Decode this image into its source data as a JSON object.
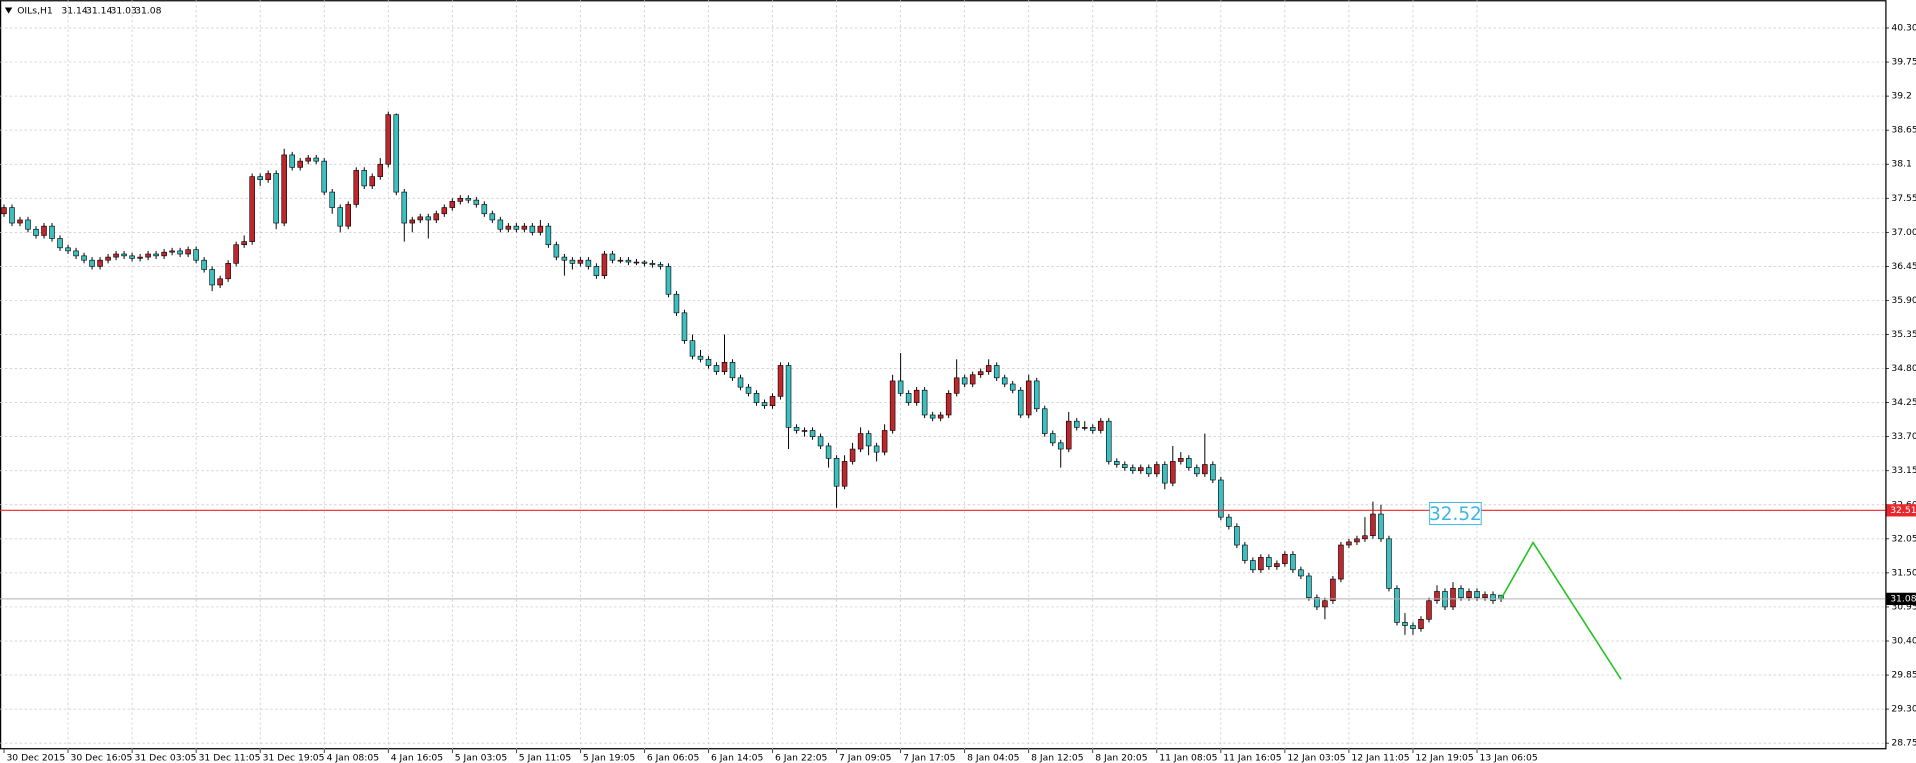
{
  "chart_data": {
    "type": "candlestick",
    "title": "OILs,H1",
    "up_color": "#c0272d",
    "down_color": "#3dbfbf",
    "grid": true,
    "categories": [
      "30 Dec 2015",
      null,
      null,
      null,
      null,
      null,
      null,
      null,
      "30 Dec 16:05",
      null,
      null,
      null,
      null,
      null,
      null,
      null,
      "31 Dec 03:05",
      null,
      null,
      null,
      null,
      null,
      null,
      null,
      "31 Dec 11:05",
      null,
      null,
      null,
      null,
      null,
      null,
      null,
      "31 Dec 19:05",
      null,
      null,
      null,
      null,
      null,
      null,
      null,
      "4 Jan 08:05",
      null,
      null,
      null,
      null,
      null,
      null,
      null,
      "4 Jan 16:05",
      null,
      null,
      null,
      null,
      null,
      null,
      null,
      "5 Jan 03:05",
      null,
      null,
      null,
      null,
      null,
      null,
      null,
      "5 Jan 11:05",
      null,
      null,
      null,
      null,
      null,
      null,
      null,
      "5 Jan 19:05",
      null,
      null,
      null,
      null,
      null,
      null,
      null,
      "6 Jan 06:05",
      null,
      null,
      null,
      null,
      null,
      null,
      null,
      "6 Jan 14:05",
      null,
      null,
      null,
      null,
      null,
      null,
      null,
      "6 Jan 22:05",
      null,
      null,
      null,
      null,
      null,
      null,
      null,
      "7 Jan 09:05",
      null,
      null,
      null,
      null,
      null,
      null,
      null,
      "7 Jan 17:05",
      null,
      null,
      null,
      null,
      null,
      null,
      null,
      "8 Jan 04:05",
      null,
      null,
      null,
      null,
      null,
      null,
      null,
      "8 Jan 12:05",
      null,
      null,
      null,
      null,
      null,
      null,
      null,
      "8 Jan 20:05",
      null,
      null,
      null,
      null,
      null,
      null,
      null,
      "11 Jan 08:05",
      null,
      null,
      null,
      null,
      null,
      null,
      null,
      "11 Jan 16:05",
      null,
      null,
      null,
      null,
      null,
      null,
      null,
      "12 Jan 03:05",
      null,
      null,
      null,
      null,
      null,
      null,
      null,
      "12 Jan 11:05",
      null,
      null,
      null,
      null,
      null,
      null,
      null,
      "12 Jan 19:05",
      null,
      null,
      null,
      null,
      null,
      null,
      null,
      "13 Jan 06:05",
      null,
      null,
      null
    ],
    "candles": [
      [
        37.3,
        37.45,
        37.25,
        37.4
      ],
      [
        37.4,
        37.45,
        37.1,
        37.15
      ],
      [
        37.15,
        37.25,
        37.1,
        37.2
      ],
      [
        37.2,
        37.25,
        37.0,
        37.05
      ],
      [
        37.05,
        37.1,
        36.9,
        36.95
      ],
      [
        36.95,
        37.15,
        36.9,
        37.1
      ],
      [
        37.1,
        37.15,
        36.85,
        36.9
      ],
      [
        36.9,
        36.95,
        36.7,
        36.75
      ],
      [
        36.75,
        36.8,
        36.65,
        36.7
      ],
      [
        36.7,
        36.75,
        36.57,
        36.62
      ],
      [
        36.62,
        36.67,
        36.5,
        36.55
      ],
      [
        36.55,
        36.6,
        36.4,
        36.45
      ],
      [
        36.45,
        36.6,
        36.4,
        36.55
      ],
      [
        36.55,
        36.65,
        36.5,
        36.6
      ],
      [
        36.6,
        36.7,
        36.55,
        36.65
      ],
      [
        36.65,
        36.7,
        36.57,
        36.62
      ],
      [
        36.62,
        36.67,
        36.53,
        36.58
      ],
      [
        36.58,
        36.65,
        36.53,
        36.6
      ],
      [
        36.6,
        36.7,
        36.55,
        36.65
      ],
      [
        36.65,
        36.7,
        36.57,
        36.62
      ],
      [
        36.62,
        36.73,
        36.57,
        36.68
      ],
      [
        36.68,
        36.75,
        36.63,
        36.7
      ],
      [
        36.7,
        36.75,
        36.6,
        36.65
      ],
      [
        36.65,
        36.77,
        36.6,
        36.72
      ],
      [
        36.72,
        36.77,
        36.5,
        36.55
      ],
      [
        36.55,
        36.6,
        36.35,
        36.4
      ],
      [
        36.4,
        36.45,
        36.05,
        36.15
      ],
      [
        36.15,
        36.3,
        36.1,
        36.25
      ],
      [
        36.25,
        36.55,
        36.2,
        36.5
      ],
      [
        36.5,
        36.85,
        36.45,
        36.8
      ],
      [
        36.8,
        36.95,
        36.75,
        36.85
      ],
      [
        36.85,
        37.95,
        36.8,
        37.9
      ],
      [
        37.9,
        37.95,
        37.75,
        37.85
      ],
      [
        37.85,
        38.0,
        37.8,
        37.95
      ],
      [
        37.95,
        38.0,
        37.05,
        37.15
      ],
      [
        37.15,
        38.35,
        37.1,
        38.25
      ],
      [
        38.25,
        38.3,
        38.0,
        38.05
      ],
      [
        38.05,
        38.2,
        38.0,
        38.15
      ],
      [
        38.15,
        38.25,
        38.1,
        38.2
      ],
      [
        38.2,
        38.25,
        38.1,
        38.15
      ],
      [
        38.15,
        38.2,
        37.6,
        37.65
      ],
      [
        37.65,
        37.7,
        37.3,
        37.4
      ],
      [
        37.4,
        37.45,
        37.0,
        37.1
      ],
      [
        37.1,
        37.5,
        37.05,
        37.45
      ],
      [
        37.45,
        38.05,
        37.4,
        38.0
      ],
      [
        38.0,
        38.05,
        37.7,
        37.75
      ],
      [
        37.75,
        37.95,
        37.7,
        37.9
      ],
      [
        37.9,
        38.2,
        37.85,
        38.1
      ],
      [
        38.1,
        38.95,
        38.05,
        38.9
      ],
      [
        38.9,
        38.92,
        37.6,
        37.65
      ],
      [
        37.65,
        37.7,
        36.85,
        37.15
      ],
      [
        37.15,
        37.25,
        37.0,
        37.2
      ],
      [
        37.2,
        37.3,
        37.15,
        37.25
      ],
      [
        37.25,
        37.3,
        36.9,
        37.2
      ],
      [
        37.2,
        37.35,
        37.15,
        37.3
      ],
      [
        37.3,
        37.45,
        37.25,
        37.4
      ],
      [
        37.4,
        37.55,
        37.35,
        37.5
      ],
      [
        37.5,
        37.6,
        37.45,
        37.55
      ],
      [
        37.55,
        37.6,
        37.47,
        37.52
      ],
      [
        37.52,
        37.57,
        37.4,
        37.45
      ],
      [
        37.45,
        37.5,
        37.25,
        37.3
      ],
      [
        37.3,
        37.35,
        37.15,
        37.2
      ],
      [
        37.2,
        37.25,
        37.0,
        37.05
      ],
      [
        37.05,
        37.15,
        37.0,
        37.1
      ],
      [
        37.1,
        37.15,
        37.0,
        37.05
      ],
      [
        37.05,
        37.15,
        37.0,
        37.1
      ],
      [
        37.1,
        37.15,
        36.95,
        37.0
      ],
      [
        37.0,
        37.2,
        36.95,
        37.1
      ],
      [
        37.1,
        37.15,
        36.75,
        36.8
      ],
      [
        36.8,
        36.85,
        36.55,
        36.6
      ],
      [
        36.6,
        36.65,
        36.3,
        36.55
      ],
      [
        36.55,
        36.6,
        36.4,
        36.5
      ],
      [
        36.5,
        36.6,
        36.45,
        36.55
      ],
      [
        36.55,
        36.6,
        36.4,
        36.45
      ],
      [
        36.45,
        36.5,
        36.25,
        36.3
      ],
      [
        36.3,
        36.7,
        36.25,
        36.65
      ],
      [
        36.65,
        36.7,
        36.5,
        36.55
      ],
      [
        36.55,
        36.6,
        36.5,
        36.55
      ],
      [
        36.55,
        36.6,
        36.47,
        36.52
      ],
      [
        36.52,
        36.57,
        36.47,
        36.52
      ],
      [
        36.52,
        36.55,
        36.45,
        36.5
      ],
      [
        36.5,
        36.55,
        36.43,
        36.48
      ],
      [
        36.48,
        36.52,
        36.4,
        36.45
      ],
      [
        36.45,
        36.5,
        35.95,
        36.0
      ],
      [
        36.0,
        36.05,
        35.65,
        35.7
      ],
      [
        35.7,
        35.75,
        35.2,
        35.25
      ],
      [
        35.25,
        35.35,
        34.95,
        35.0
      ],
      [
        35.0,
        35.1,
        34.9,
        34.95
      ],
      [
        34.95,
        35.0,
        34.8,
        34.85
      ],
      [
        34.85,
        34.9,
        34.7,
        34.75
      ],
      [
        34.75,
        35.35,
        34.7,
        34.9
      ],
      [
        34.9,
        34.95,
        34.6,
        34.65
      ],
      [
        34.65,
        34.7,
        34.45,
        34.5
      ],
      [
        34.5,
        34.55,
        34.35,
        34.4
      ],
      [
        34.4,
        34.45,
        34.2,
        34.25
      ],
      [
        34.25,
        34.3,
        34.15,
        34.2
      ],
      [
        34.2,
        34.4,
        34.15,
        34.35
      ],
      [
        34.35,
        34.9,
        34.3,
        34.85
      ],
      [
        34.85,
        34.9,
        33.5,
        33.85
      ],
      [
        33.85,
        33.9,
        33.75,
        33.8
      ],
      [
        33.8,
        33.85,
        33.7,
        33.8
      ],
      [
        33.8,
        33.85,
        33.65,
        33.7
      ],
      [
        33.7,
        33.75,
        33.5,
        33.55
      ],
      [
        33.55,
        33.6,
        33.2,
        33.35
      ],
      [
        33.35,
        33.4,
        32.55,
        32.9
      ],
      [
        32.9,
        33.4,
        32.85,
        33.3
      ],
      [
        33.3,
        33.6,
        33.25,
        33.5
      ],
      [
        33.5,
        33.85,
        33.45,
        33.75
      ],
      [
        33.75,
        33.8,
        33.4,
        33.55
      ],
      [
        33.55,
        33.6,
        33.3,
        33.45
      ],
      [
        33.45,
        33.9,
        33.4,
        33.8
      ],
      [
        33.8,
        34.7,
        33.75,
        34.6
      ],
      [
        34.6,
        35.05,
        34.35,
        34.4
      ],
      [
        34.4,
        34.45,
        34.2,
        34.25
      ],
      [
        34.25,
        34.5,
        34.2,
        34.45
      ],
      [
        34.45,
        34.5,
        34.0,
        34.05
      ],
      [
        34.05,
        34.1,
        33.95,
        34.0
      ],
      [
        34.0,
        34.1,
        33.95,
        34.05
      ],
      [
        34.05,
        34.45,
        34.0,
        34.4
      ],
      [
        34.4,
        34.95,
        34.35,
        34.65
      ],
      [
        34.65,
        34.7,
        34.5,
        34.55
      ],
      [
        34.55,
        34.75,
        34.5,
        34.7
      ],
      [
        34.7,
        34.8,
        34.65,
        34.75
      ],
      [
        34.75,
        34.95,
        34.7,
        34.85
      ],
      [
        34.85,
        34.9,
        34.6,
        34.65
      ],
      [
        34.65,
        34.7,
        34.5,
        34.55
      ],
      [
        34.55,
        34.6,
        34.4,
        34.45
      ],
      [
        34.45,
        34.5,
        34.0,
        34.05
      ],
      [
        34.05,
        34.7,
        34.0,
        34.6
      ],
      [
        34.6,
        34.65,
        34.1,
        34.15
      ],
      [
        34.15,
        34.2,
        33.7,
        33.75
      ],
      [
        33.75,
        33.8,
        33.55,
        33.6
      ],
      [
        33.6,
        33.65,
        33.2,
        33.5
      ],
      [
        33.5,
        34.1,
        33.45,
        33.95
      ],
      [
        33.95,
        34.0,
        33.8,
        33.85
      ],
      [
        33.85,
        33.95,
        33.8,
        33.85
      ],
      [
        33.85,
        33.9,
        33.75,
        33.8
      ],
      [
        33.8,
        34.0,
        33.75,
        33.95
      ],
      [
        33.95,
        34.0,
        33.25,
        33.3
      ],
      [
        33.3,
        33.35,
        33.2,
        33.25
      ],
      [
        33.25,
        33.3,
        33.15,
        33.2
      ],
      [
        33.2,
        33.25,
        33.1,
        33.15
      ],
      [
        33.15,
        33.25,
        33.1,
        33.2
      ],
      [
        33.2,
        33.25,
        33.05,
        33.1
      ],
      [
        33.1,
        33.3,
        33.05,
        33.25
      ],
      [
        33.25,
        33.3,
        32.85,
        32.95
      ],
      [
        32.95,
        33.55,
        32.9,
        33.3
      ],
      [
        33.3,
        33.45,
        33.25,
        33.35
      ],
      [
        33.35,
        33.4,
        33.15,
        33.2
      ],
      [
        33.2,
        33.25,
        33.05,
        33.1
      ],
      [
        33.1,
        33.75,
        33.05,
        33.25
      ],
      [
        33.25,
        33.3,
        32.95,
        33.0
      ],
      [
        33.0,
        33.05,
        32.35,
        32.4
      ],
      [
        32.4,
        32.45,
        32.2,
        32.25
      ],
      [
        32.25,
        32.3,
        31.9,
        31.95
      ],
      [
        31.95,
        32.0,
        31.65,
        31.7
      ],
      [
        31.7,
        31.75,
        31.5,
        31.55
      ],
      [
        31.55,
        31.8,
        31.5,
        31.75
      ],
      [
        31.75,
        31.8,
        31.55,
        31.6
      ],
      [
        31.6,
        31.7,
        31.55,
        31.65
      ],
      [
        31.65,
        31.85,
        31.6,
        31.8
      ],
      [
        31.8,
        31.85,
        31.5,
        31.55
      ],
      [
        31.55,
        31.6,
        31.4,
        31.45
      ],
      [
        31.45,
        31.5,
        31.05,
        31.1
      ],
      [
        31.1,
        31.15,
        30.9,
        30.95
      ],
      [
        30.95,
        31.1,
        30.75,
        31.05
      ],
      [
        31.05,
        31.45,
        31.0,
        31.4
      ],
      [
        31.4,
        32.0,
        31.35,
        31.95
      ],
      [
        31.95,
        32.05,
        31.9,
        32.0
      ],
      [
        32.0,
        32.1,
        31.95,
        32.05
      ],
      [
        32.05,
        32.4,
        32.0,
        32.1
      ],
      [
        32.1,
        32.65,
        32.05,
        32.45
      ],
      [
        32.45,
        32.6,
        32.0,
        32.05
      ],
      [
        32.05,
        32.1,
        31.2,
        31.25
      ],
      [
        31.25,
        31.3,
        30.65,
        30.7
      ],
      [
        30.7,
        30.85,
        30.5,
        30.65
      ],
      [
        30.65,
        30.7,
        30.5,
        30.6
      ],
      [
        30.6,
        30.8,
        30.55,
        30.75
      ],
      [
        30.75,
        31.1,
        30.7,
        31.05
      ],
      [
        31.05,
        31.3,
        31.0,
        31.2
      ],
      [
        31.2,
        31.25,
        30.9,
        30.95
      ],
      [
        30.95,
        31.35,
        30.9,
        31.25
      ],
      [
        31.25,
        31.3,
        31.05,
        31.1
      ],
      [
        31.1,
        31.25,
        31.05,
        31.2
      ],
      [
        31.2,
        31.25,
        31.05,
        31.1
      ],
      [
        31.1,
        31.2,
        31.05,
        31.15
      ],
      [
        31.15,
        31.2,
        31.0,
        31.05
      ],
      [
        31.14,
        31.14,
        31.03,
        31.08
      ]
    ],
    "xlim": [
      -0.5,
      235
    ],
    "ylim": [
      28.65,
      40.75
    ],
    "yticks": [
      {
        "value": 40.3,
        "label": "40.30"
      },
      39.75,
      39.2,
      38.65,
      38.1,
      37.55,
      {
        "value": 37.0,
        "label": "37.00"
      },
      36.45,
      {
        "value": 35.9,
        "label": "35.90"
      },
      35.35,
      {
        "value": 34.8,
        "label": "34.80"
      },
      34.25,
      {
        "value": 33.7,
        "label": "33.70"
      },
      33.15,
      {
        "value": 32.6,
        "label": "32.60"
      },
      32.05,
      {
        "value": 31.5,
        "label": "31.50"
      },
      30.95,
      {
        "value": 30.4,
        "label": "30.40"
      },
      29.85,
      {
        "value": 29.3,
        "label": "29.30"
      },
      28.75
    ],
    "level_line": {
      "value": 32.51,
      "color": "#e8262b"
    },
    "bid_color": "#b0b0b0",
    "annotation": "32.52",
    "annotation_color": "#3bb5e6",
    "forecast": {
      "color": "#22c322",
      "x": [
        187,
        191,
        202
      ],
      "values": [
        31.08,
        31.99,
        29.78
      ]
    }
  }
}
